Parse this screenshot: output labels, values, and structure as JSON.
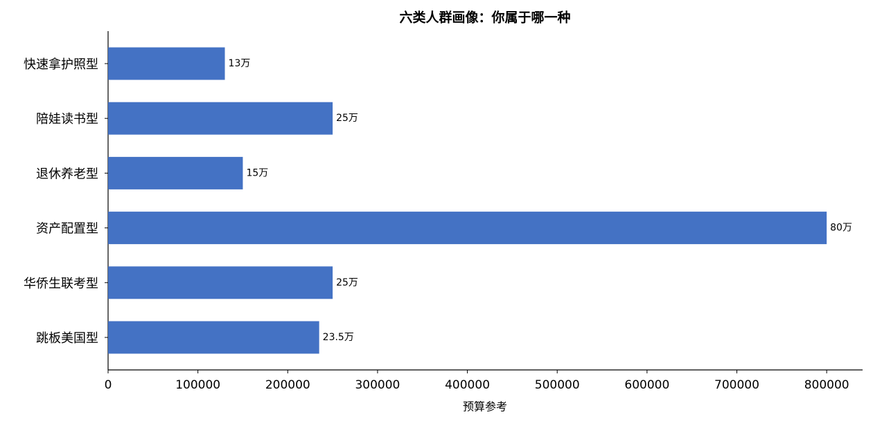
{
  "chart_data": {
    "type": "bar",
    "orientation": "horizontal",
    "title": "六类人群画像：你属于哪一种",
    "x_label": "预算参考",
    "categories": [
      "快速拿护照型",
      "陪娃读书型",
      "退休养老型",
      "资产配置型",
      "华侨生联考型",
      "跳板美国型"
    ],
    "values": [
      130000,
      250000,
      150000,
      800000,
      250000,
      235000
    ],
    "value_labels": [
      "13万",
      "25万",
      "15万",
      "80万",
      "25万",
      "23.5万"
    ],
    "color": "#4472c4",
    "xlim": [
      0,
      840000
    ],
    "xticks": [
      0,
      100000,
      200000,
      300000,
      400000,
      500000,
      600000,
      700000,
      800000
    ]
  }
}
